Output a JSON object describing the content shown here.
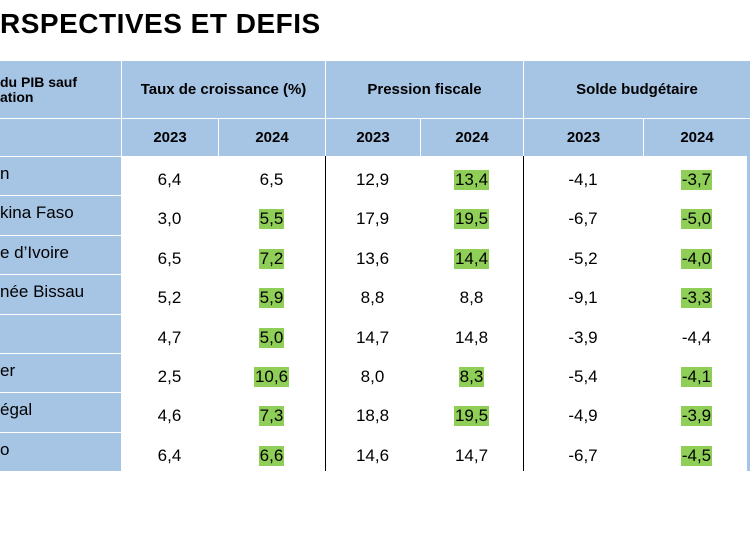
{
  "title": "RSPECTIVES ET DEFIS",
  "header": {
    "first_col": "% du PIB sauf\n…ation",
    "first_col_line1": "du PIB sauf",
    "first_col_line2": "ation",
    "groups": [
      {
        "label": "Taux de croissance (%)"
      },
      {
        "label": "Pression fiscale"
      },
      {
        "label": "Solde budgétaire"
      }
    ],
    "years": [
      "2023",
      "2024",
      "2023",
      "2024",
      "2023",
      "2024"
    ]
  },
  "highlight_color": "#8fce57",
  "header_color": "#a6c4e4",
  "rows": [
    {
      "name": "n",
      "v": [
        "6,4",
        "6,5",
        "12,9",
        "13,4",
        "-4,1",
        "-3,7"
      ],
      "hl": [
        false,
        false,
        false,
        true,
        false,
        true
      ]
    },
    {
      "name": "kina Faso",
      "v": [
        "3,0",
        "5,5",
        "17,9",
        "19,5",
        "-6,7",
        "-5,0"
      ],
      "hl": [
        false,
        true,
        false,
        true,
        false,
        true
      ]
    },
    {
      "name": "e d’Ivoire",
      "v": [
        "6,5",
        "7,2",
        "13,6",
        "14,4",
        "-5,2",
        "-4,0"
      ],
      "hl": [
        false,
        true,
        false,
        true,
        false,
        true
      ]
    },
    {
      "name": "née Bissau",
      "v": [
        "5,2",
        "5,9",
        "8,8",
        "8,8",
        "-9,1",
        "-3,3"
      ],
      "hl": [
        false,
        true,
        false,
        false,
        false,
        true
      ]
    },
    {
      "name": "",
      "v": [
        "4,7",
        "5,0",
        "14,7",
        "14,8",
        "-3,9",
        "-4,4"
      ],
      "hl": [
        false,
        true,
        false,
        false,
        false,
        false
      ]
    },
    {
      "name": "er",
      "v": [
        "2,5",
        "10,6",
        "8,0",
        "8,3",
        "-5,4",
        "-4,1"
      ],
      "hl": [
        false,
        true,
        false,
        true,
        false,
        true
      ]
    },
    {
      "name": "égal",
      "v": [
        "4,6",
        "7,3",
        "18,8",
        "19,5",
        "-4,9",
        "-3,9"
      ],
      "hl": [
        false,
        true,
        false,
        true,
        false,
        true
      ]
    },
    {
      "name": "o",
      "v": [
        "6,4",
        "6,6",
        "14,6",
        "14,7",
        "-6,7",
        "-4,5"
      ],
      "hl": [
        false,
        true,
        false,
        false,
        false,
        true
      ]
    }
  ]
}
